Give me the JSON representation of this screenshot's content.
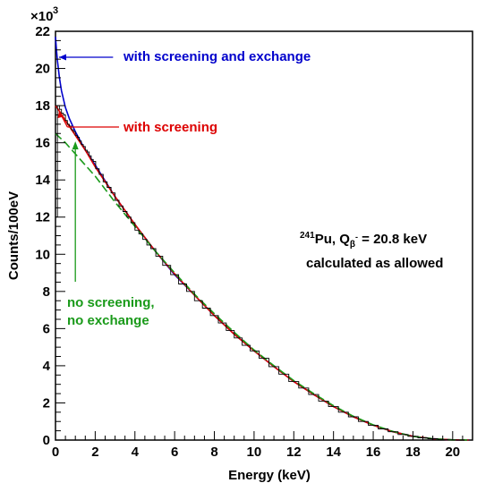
{
  "chart_data": {
    "type": "line",
    "xlabel": "Energy (keV)",
    "ylabel": "Counts/100eV",
    "y_multiplier_label": "×10",
    "y_multiplier_exponent": "3",
    "xlim": [
      0,
      21
    ],
    "ylim": [
      0,
      22
    ],
    "x_ticks": [
      0,
      2,
      4,
      6,
      8,
      10,
      12,
      14,
      16,
      18,
      20
    ],
    "x_tick_labels": [
      "0",
      "2",
      "4",
      "6",
      "8",
      "10",
      "12",
      "14",
      "16",
      "18",
      "20"
    ],
    "y_ticks": [
      0,
      2,
      4,
      6,
      8,
      10,
      12,
      14,
      16,
      18,
      20,
      22
    ],
    "y_tick_labels": [
      "0",
      "2",
      "4",
      "6",
      "8",
      "10",
      "12",
      "14",
      "16",
      "18",
      "20",
      "22"
    ],
    "grid": false,
    "series": [
      {
        "name": "with screening and exchange",
        "color": "#0000cc",
        "x": [
          0,
          0.05,
          0.1,
          0.2,
          0.3,
          0.5,
          0.7,
          1,
          1.5,
          2,
          3,
          4,
          5,
          6,
          7,
          8,
          9,
          10,
          11,
          12,
          13,
          14,
          15,
          16,
          17,
          18,
          19,
          20,
          20.8
        ],
        "values": [
          21.7,
          21.0,
          20.4,
          19.5,
          18.8,
          17.9,
          17.3,
          16.6,
          15.6,
          14.8,
          13.1,
          11.6,
          10.2,
          8.9,
          7.8,
          6.7,
          5.7,
          4.8,
          3.95,
          3.15,
          2.45,
          1.8,
          1.25,
          0.8,
          0.45,
          0.2,
          0.07,
          0.01,
          0
        ]
      },
      {
        "name": "with screening",
        "color": "#dd0000",
        "x": [
          0,
          0.2,
          0.5,
          1,
          1.5,
          2,
          3,
          4,
          5,
          6,
          7,
          8,
          9,
          10,
          11,
          12,
          13,
          14,
          15,
          16,
          17,
          18,
          19,
          20,
          20.8
        ],
        "values": [
          18.0,
          17.7,
          17.2,
          16.4,
          15.6,
          14.7,
          13.1,
          11.6,
          10.2,
          8.95,
          7.8,
          6.7,
          5.7,
          4.8,
          3.95,
          3.15,
          2.45,
          1.8,
          1.25,
          0.8,
          0.45,
          0.2,
          0.07,
          0.01,
          0
        ]
      },
      {
        "name": "no screening, no exchange",
        "color": "#1a9a1a",
        "x": [
          0,
          0.2,
          0.5,
          1,
          1.5,
          2,
          3,
          4,
          5,
          6,
          7,
          8,
          9,
          10,
          11,
          12,
          13,
          14,
          15,
          16,
          17,
          18,
          19,
          20,
          20.8
        ],
        "values": [
          16.5,
          16.3,
          16.0,
          15.4,
          14.8,
          14.2,
          12.8,
          11.5,
          10.2,
          9.0,
          7.85,
          6.8,
          5.8,
          4.85,
          4.0,
          3.2,
          2.5,
          1.85,
          1.28,
          0.82,
          0.46,
          0.2,
          0.07,
          0.01,
          0
        ]
      },
      {
        "name": "histogram",
        "color": "#000000",
        "x": [
          0.05,
          0.15,
          0.25,
          0.35,
          0.45,
          0.55,
          0.65,
          0.75,
          0.85,
          0.95,
          1.05,
          1.15,
          1.25,
          1.35,
          1.45,
          1.55,
          1.65,
          1.75,
          1.85,
          1.95,
          2.1,
          2.3,
          2.5,
          2.7,
          2.9,
          3.1,
          3.3,
          3.5,
          3.7,
          3.9,
          4.1,
          4.3,
          4.5,
          4.7,
          4.9,
          5.2,
          5.6,
          6.0,
          6.4,
          6.8,
          7.2,
          7.6,
          8.0,
          8.4,
          8.8,
          9.2,
          9.6,
          10.0,
          10.5,
          11.0,
          11.5,
          12.0,
          12.5,
          13.0,
          13.5,
          14.0,
          14.5,
          15.0,
          15.5,
          16.0,
          16.5,
          17.0,
          17.5,
          18.0,
          18.5,
          19.0,
          19.5,
          20.0,
          20.4
        ],
        "values": [
          12.0,
          18.0,
          17.8,
          17.6,
          17.5,
          17.2,
          17.0,
          16.9,
          16.7,
          16.6,
          16.4,
          16.3,
          16.1,
          15.9,
          15.8,
          15.6,
          15.5,
          15.3,
          15.1,
          15.0,
          14.6,
          14.3,
          13.9,
          13.6,
          13.3,
          12.9,
          12.6,
          12.3,
          12.0,
          11.7,
          11.3,
          11.1,
          10.8,
          10.5,
          10.3,
          9.9,
          9.4,
          8.9,
          8.4,
          8.0,
          7.5,
          7.1,
          6.7,
          6.3,
          5.9,
          5.5,
          5.1,
          4.8,
          4.4,
          3.95,
          3.55,
          3.15,
          2.8,
          2.45,
          2.1,
          1.8,
          1.5,
          1.25,
          1.0,
          0.8,
          0.6,
          0.45,
          0.3,
          0.2,
          0.12,
          0.07,
          0.03,
          0.01,
          0.0
        ]
      }
    ],
    "annotations": [
      {
        "text": "with screening and exchange",
        "color": "#0000cc"
      },
      {
        "text": "with screening",
        "color": "#dd0000"
      },
      {
        "text": "no screening,",
        "color": "#1a9a1a"
      },
      {
        "text": "no exchange",
        "color": "#1a9a1a"
      }
    ],
    "info_text": {
      "mass_number": "241",
      "nucleus": "Pu, Q",
      "subscript": "β",
      "superscript_minus": "-",
      "q_value": " = 20.8 keV",
      "line2": "calculated as allowed"
    }
  }
}
